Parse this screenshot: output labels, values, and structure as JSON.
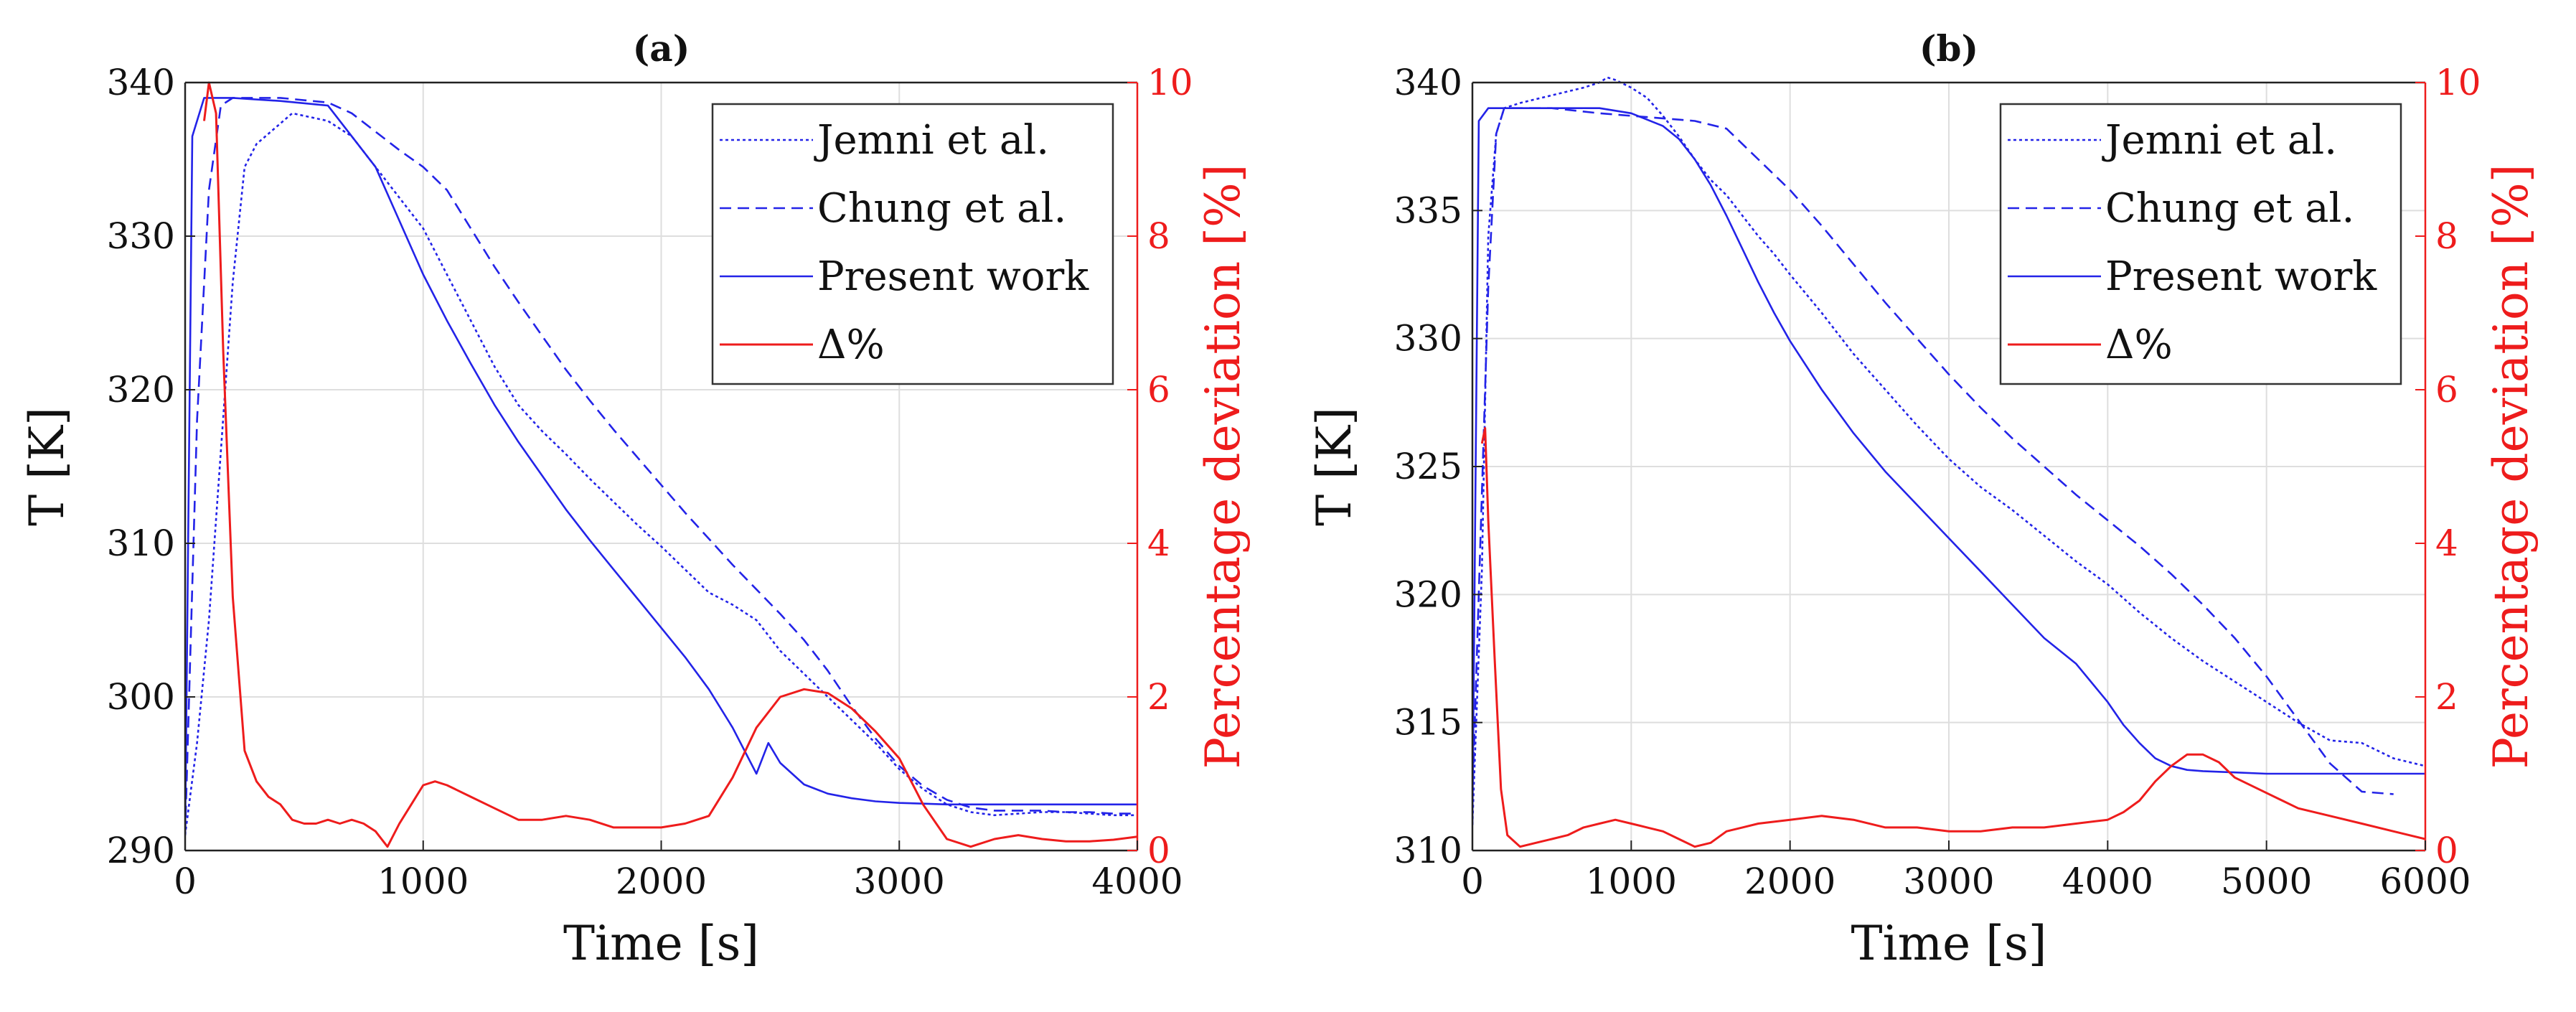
{
  "chart_data": [
    {
      "type": "line",
      "title": "(a)",
      "xlabel": "Time [s]",
      "ylabel": "T [K]",
      "y2label": "Percentage deviation [%]",
      "xlim": [
        0,
        4000
      ],
      "ylim": [
        290,
        340
      ],
      "y2lim": [
        0,
        10
      ],
      "xticks": [
        0,
        1000,
        2000,
        3000,
        4000
      ],
      "yticks": [
        290,
        300,
        310,
        320,
        330,
        340
      ],
      "y2ticks": [
        0,
        2,
        4,
        6,
        8,
        10
      ],
      "grid": true,
      "legend": "top-right",
      "series": [
        {
          "name": "Jemni et al.",
          "axis": "left",
          "style": "dotted",
          "color": "#2323e8",
          "x": [
            0,
            50,
            100,
            200,
            250,
            300,
            450,
            600,
            700,
            800,
            900,
            1000,
            1100,
            1200,
            1300,
            1400,
            1500,
            1600,
            1700,
            1800,
            1900,
            2000,
            2100,
            2200,
            2300,
            2400,
            2500,
            2600,
            2700,
            2800,
            2900,
            3000,
            3100,
            3200,
            3300,
            3400,
            3500,
            3600,
            3700,
            3800,
            3900,
            4000
          ],
          "y": [
            291,
            297,
            305,
            327,
            334.5,
            336,
            338,
            337.5,
            336.5,
            334.5,
            332.5,
            330.5,
            327.5,
            324.5,
            321.5,
            319,
            317.3,
            315.8,
            314.2,
            312.7,
            311.2,
            309.8,
            308.3,
            306.8,
            306,
            305,
            303,
            301.5,
            300,
            298.5,
            297,
            295.3,
            294,
            293,
            292.5,
            292.3,
            292.4,
            292.5,
            292.5,
            292.4,
            292.3,
            292.3
          ]
        },
        {
          "name": "Chung et al.",
          "axis": "left",
          "style": "dashed",
          "color": "#2323e8",
          "x": [
            0,
            50,
            100,
            150,
            200,
            400,
            600,
            700,
            800,
            900,
            1000,
            1100,
            1200,
            1300,
            1400,
            1500,
            1600,
            1700,
            1800,
            1900,
            2000,
            2100,
            2200,
            2300,
            2400,
            2500,
            2600,
            2700,
            2800,
            2900,
            3000,
            3100,
            3200,
            3300,
            3400,
            3500,
            3600,
            3700,
            3800,
            3900,
            4000
          ],
          "y": [
            291,
            318,
            333,
            338.5,
            339,
            339,
            338.7,
            338,
            336.8,
            335.6,
            334.5,
            333,
            330.5,
            328,
            325.7,
            323.5,
            321.3,
            319.3,
            317.4,
            315.6,
            313.8,
            312,
            310.3,
            308.6,
            307,
            305.4,
            303.7,
            301.7,
            299.4,
            297.3,
            295.5,
            294.2,
            293.3,
            292.8,
            292.6,
            292.6,
            292.6,
            292.5,
            292.5,
            292.4,
            292.4
          ]
        },
        {
          "name": "Present work",
          "axis": "left",
          "style": "solid",
          "color": "#2323e8",
          "x": [
            0,
            30,
            80,
            130,
            200,
            400,
            600,
            800,
            900,
            1000,
            1100,
            1200,
            1300,
            1400,
            1500,
            1600,
            1700,
            1800,
            1900,
            2000,
            2100,
            2200,
            2300,
            2400,
            2450,
            2500,
            2600,
            2700,
            2800,
            2900,
            3000,
            3100,
            3200,
            3300,
            3400,
            3500,
            3700,
            3900,
            4000
          ],
          "y": [
            291,
            336.5,
            339,
            339,
            339,
            338.8,
            338.5,
            334.5,
            331,
            327.5,
            324.5,
            321.7,
            319,
            316.6,
            314.4,
            312.2,
            310.2,
            308.3,
            306.4,
            304.5,
            302.6,
            300.5,
            298,
            295,
            297,
            295.7,
            294.3,
            293.7,
            293.4,
            293.2,
            293.1,
            293.05,
            293,
            293,
            293,
            293,
            293,
            293,
            293
          ]
        },
        {
          "name": "Δ%",
          "axis": "right",
          "style": "solid",
          "color": "#ee1c1c",
          "x": [
            80,
            100,
            130,
            160,
            200,
            250,
            300,
            350,
            400,
            450,
            500,
            550,
            600,
            650,
            700,
            750,
            800,
            850,
            900,
            950,
            1000,
            1050,
            1100,
            1200,
            1300,
            1400,
            1500,
            1600,
            1700,
            1800,
            1900,
            2000,
            2100,
            2200,
            2300,
            2400,
            2500,
            2600,
            2700,
            2800,
            2900,
            3000,
            3100,
            3200,
            3300,
            3400,
            3500,
            3600,
            3700,
            3800,
            3900,
            4000
          ],
          "y": [
            9.5,
            10,
            9.6,
            6.5,
            3.3,
            1.3,
            0.9,
            0.7,
            0.6,
            0.4,
            0.35,
            0.35,
            0.4,
            0.35,
            0.4,
            0.35,
            0.25,
            0.05,
            0.35,
            0.6,
            0.85,
            0.9,
            0.85,
            0.7,
            0.55,
            0.4,
            0.4,
            0.45,
            0.4,
            0.3,
            0.3,
            0.3,
            0.35,
            0.45,
            0.95,
            1.6,
            2,
            2.1,
            2.05,
            1.85,
            1.55,
            1.2,
            0.6,
            0.15,
            0.05,
            0.15,
            0.2,
            0.15,
            0.12,
            0.12,
            0.14,
            0.18
          ]
        }
      ]
    },
    {
      "type": "line",
      "title": "(b)",
      "xlabel": "Time [s]",
      "ylabel": "T [K]",
      "y2label": "Percentage deviation [%]",
      "xlim": [
        0,
        6000
      ],
      "ylim": [
        310,
        340
      ],
      "y2lim": [
        0,
        10
      ],
      "xticks": [
        0,
        1000,
        2000,
        3000,
        4000,
        5000,
        6000
      ],
      "yticks": [
        310,
        315,
        320,
        325,
        330,
        335,
        340
      ],
      "y2ticks": [
        0,
        2,
        4,
        6,
        8,
        10
      ],
      "grid": true,
      "legend": "top-right",
      "series": [
        {
          "name": "Jemni et al.",
          "axis": "left",
          "style": "dotted",
          "color": "#2323e8",
          "x": [
            0,
            60,
            100,
            150,
            200,
            300,
            500,
            700,
            800,
            850,
            900,
            1000,
            1100,
            1200,
            1300,
            1400,
            1500,
            1600,
            1700,
            1800,
            1900,
            2000,
            2200,
            2400,
            2600,
            2800,
            3000,
            3200,
            3400,
            3600,
            3800,
            4000,
            4200,
            4400,
            4600,
            4800,
            5000,
            5200,
            5400,
            5600,
            5800,
            6000
          ],
          "y": [
            311,
            321,
            334,
            338,
            339,
            339.2,
            339.5,
            339.8,
            340,
            340.2,
            340.1,
            339.8,
            339.4,
            338.7,
            337.9,
            337,
            336.2,
            335.6,
            334.8,
            334,
            333.3,
            332.5,
            331,
            329.4,
            328,
            326.6,
            325.3,
            324.2,
            323.3,
            322.3,
            321.3,
            320.4,
            319.3,
            318.3,
            317.4,
            316.6,
            315.8,
            315,
            314.3,
            314.2,
            313.6,
            313.3
          ]
        },
        {
          "name": "Chung et al.",
          "axis": "left",
          "style": "dashed",
          "color": "#2323e8",
          "x": [
            0,
            100,
            150,
            200,
            500,
            800,
            1000,
            1200,
            1400,
            1600,
            1800,
            2000,
            2200,
            2400,
            2600,
            2800,
            3000,
            3200,
            3400,
            3600,
            3800,
            4000,
            4200,
            4400,
            4600,
            4800,
            5000,
            5200,
            5400,
            5600,
            5800
          ],
          "y": [
            312,
            332,
            338,
            339,
            339,
            338.8,
            338.7,
            338.6,
            338.5,
            338.2,
            337,
            335.8,
            334.4,
            332.9,
            331.4,
            330,
            328.6,
            327.3,
            326.1,
            325,
            323.9,
            322.9,
            321.9,
            320.8,
            319.6,
            318.3,
            316.8,
            315.1,
            313.4,
            312.3,
            312.2
          ]
        },
        {
          "name": "Present work",
          "axis": "left",
          "style": "solid",
          "color": "#2323e8",
          "x": [
            0,
            40,
            100,
            200,
            400,
            600,
            800,
            1000,
            1200,
            1300,
            1400,
            1500,
            1600,
            1700,
            1800,
            1900,
            2000,
            2200,
            2400,
            2600,
            2800,
            3000,
            3200,
            3400,
            3600,
            3800,
            4000,
            4100,
            4200,
            4300,
            4400,
            4500,
            4600,
            4800,
            5000,
            5500,
            6000
          ],
          "y": [
            311,
            338.5,
            339,
            339,
            339,
            339,
            339,
            338.8,
            338.3,
            337.8,
            337,
            336,
            334.8,
            333.5,
            332.2,
            331,
            329.9,
            328,
            326.3,
            324.8,
            323.5,
            322.2,
            320.9,
            319.6,
            318.3,
            317.3,
            315.8,
            314.9,
            314.2,
            313.6,
            313.3,
            313.15,
            313.1,
            313.05,
            313,
            313,
            313
          ]
        },
        {
          "name": "Δ%",
          "axis": "right",
          "style": "solid",
          "color": "#ee1c1c",
          "x": [
            60,
            80,
            100,
            140,
            180,
            220,
            300,
            400,
            500,
            600,
            700,
            800,
            900,
            1000,
            1100,
            1200,
            1300,
            1400,
            1500,
            1600,
            1700,
            1800,
            2000,
            2200,
            2400,
            2600,
            2800,
            3000,
            3200,
            3400,
            3600,
            3800,
            4000,
            4100,
            4200,
            4300,
            4400,
            4500,
            4600,
            4700,
            4800,
            5000,
            5200,
            5400,
            5600,
            5800,
            6000
          ],
          "y": [
            5.3,
            5.5,
            4.3,
            2.5,
            0.8,
            0.2,
            0.05,
            0.1,
            0.15,
            0.2,
            0.3,
            0.35,
            0.4,
            0.35,
            0.3,
            0.25,
            0.15,
            0.05,
            0.1,
            0.25,
            0.3,
            0.35,
            0.4,
            0.45,
            0.4,
            0.3,
            0.3,
            0.25,
            0.25,
            0.3,
            0.3,
            0.35,
            0.4,
            0.5,
            0.65,
            0.9,
            1.1,
            1.25,
            1.25,
            1.15,
            0.95,
            0.75,
            0.55,
            0.45,
            0.35,
            0.25,
            0.15
          ]
        }
      ]
    }
  ]
}
